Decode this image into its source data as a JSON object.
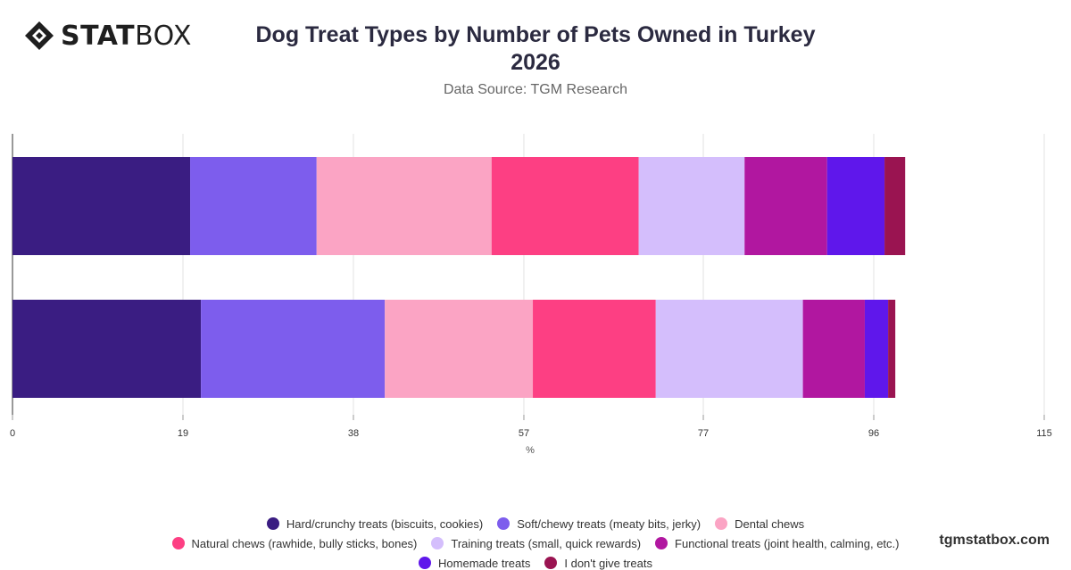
{
  "header": {
    "brand_bold": "STAT",
    "brand_light": "BOX",
    "title_line1": "Dog Treat Types by Number of Pets Owned in Turkey",
    "title_line2": "2026",
    "subtitle": "Data Source: TGM Research"
  },
  "watermark": "tgmstatbox.com",
  "chart_data": {
    "type": "bar",
    "orientation": "horizontal",
    "stacked": true,
    "categories": [
      "",
      ""
    ],
    "xlabel": "%",
    "xlim": [
      0,
      115
    ],
    "xticks": [
      0,
      19,
      38,
      57,
      77,
      96,
      115
    ],
    "grid": true,
    "legend_position": "bottom",
    "series": [
      {
        "name": "Hard/crunchy treats (biscuits, cookies)",
        "color": "#3a1d82",
        "values": [
          19.8,
          21.0
        ]
      },
      {
        "name": "Soft/chewy treats (meaty bits, jerky)",
        "color": "#7d5ded",
        "values": [
          14.1,
          20.5
        ]
      },
      {
        "name": "Dental chews",
        "color": "#fba4c4",
        "values": [
          19.5,
          16.5
        ]
      },
      {
        "name": "Natural chews (rawhide, bully sticks, bones)",
        "color": "#fd3f83",
        "values": [
          16.4,
          13.7
        ]
      },
      {
        "name": "Training treats (small, quick rewards)",
        "color": "#d4befc",
        "values": [
          11.8,
          16.4
        ]
      },
      {
        "name": "Functional treats (joint health, calming, etc.)",
        "color": "#b117a0",
        "values": [
          9.2,
          6.9
        ]
      },
      {
        "name": "Homemade treats",
        "color": "#5f17eb",
        "values": [
          6.4,
          2.6
        ]
      },
      {
        "name": "I don't give treats",
        "color": "#9a1451",
        "values": [
          2.3,
          0.8
        ]
      }
    ]
  }
}
